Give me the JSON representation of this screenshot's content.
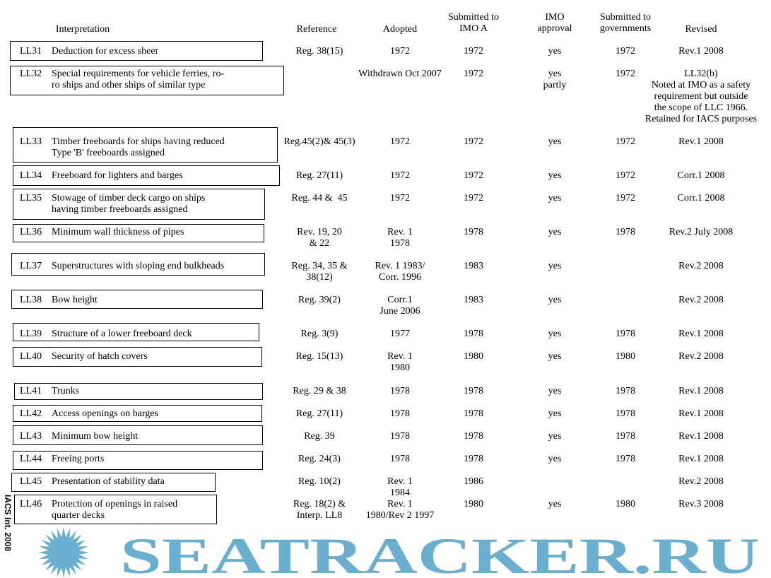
{
  "headers": {
    "interpretation": "Interpretation",
    "reference": "Reference",
    "adopted": "Adopted",
    "submitted": "Submitted to\nIMO A",
    "imo": "IMO\napproval",
    "governments": "Submitted to\ngovernments",
    "revised": "Revised"
  },
  "rows": [
    {
      "code": "LL31",
      "title": "Deduction for excess sheer",
      "reference": "Reg. 38(15)",
      "adopted": "1972",
      "submitted": "1972",
      "imo": "yes",
      "governments": "1972",
      "revised": "Rev.1 2008"
    },
    {
      "code": "LL32",
      "title": "Special requirements for vehicle ferries, ro-\nro ships and other ships of similar type",
      "reference": "",
      "adopted": "Withdrawn Oct 2007",
      "submitted": "1972",
      "imo": "yes\npartly",
      "governments": "1972",
      "revised": "LL32(b)\nNoted at IMO as a safety\nrequirement but outside\nthe scope of LLC 1966.\nRetained for IACS purposes"
    },
    {
      "code": "LL33",
      "title": "Timber freeboards for ships having reduced\nType 'B' freeboards assigned",
      "reference": "Reg.45(2)& 45(3)",
      "adopted": "1972",
      "submitted": "1972",
      "imo": "yes",
      "governments": "1972",
      "revised": "Rev.1 2008"
    },
    {
      "code": "LL34",
      "title": "Freeboard for lighters and barges",
      "reference": "Reg. 27(11)",
      "adopted": "1972",
      "submitted": "1972",
      "imo": "yes",
      "governments": "1972",
      "revised": "Corr.1 2008"
    },
    {
      "code": "LL35",
      "title": "Stowage of timber deck cargo on ships\nhaving timber freeboards assigned",
      "reference": "Reg. 44 &  45",
      "adopted": "1972",
      "submitted": "1972",
      "imo": "yes",
      "governments": "1972",
      "revised": "Corr.1 2008"
    },
    {
      "code": "LL36",
      "title": "Minimum wall thickness of pipes",
      "reference": "Rev. 19, 20\n& 22",
      "adopted": "Rev. 1\n1978",
      "submitted": "1978",
      "imo": "yes",
      "governments": "1978",
      "revised": "Rev.2 July 2008"
    },
    {
      "code": "LL37",
      "title": "Superstructures with sloping end bulkheads",
      "reference": "Reg. 34, 35 &\n38(12)",
      "adopted": "Rev. 1 1983/\nCorr. 1996",
      "submitted": "1983",
      "imo": "yes",
      "governments": "",
      "revised": "Rev.2 2008"
    },
    {
      "code": "LL38",
      "title": "Bow height",
      "reference": "Reg. 39(2)",
      "adopted": "Corr.1\nJune 2006",
      "submitted": "1983",
      "imo": "yes",
      "governments": "",
      "revised": "Rev.2 2008"
    },
    {
      "code": "LL39",
      "title": "Structure of a lower freeboard deck",
      "reference": "Reg. 3(9)",
      "adopted": "1977",
      "submitted": "1978",
      "imo": "yes",
      "governments": "1978",
      "revised": "Rev.1 2008"
    },
    {
      "code": "LL40",
      "title": "Security of hatch covers",
      "reference": "Reg. 15(13)",
      "adopted": "Rev. 1\n1980",
      "submitted": "1980",
      "imo": "yes",
      "governments": "1980",
      "revised": "Rev.2 2008"
    },
    {
      "code": "LL41",
      "title": "Trunks",
      "reference": "Reg. 29 & 38",
      "adopted": "1978",
      "submitted": "1978",
      "imo": "yes",
      "governments": "1978",
      "revised": "Rev.1 2008"
    },
    {
      "code": "LL42",
      "title": "Access openings on barges",
      "reference": "Reg. 27(11)",
      "adopted": "1978",
      "submitted": "1978",
      "imo": "yes",
      "governments": "1978",
      "revised": "Rev.1 2008"
    },
    {
      "code": "LL43",
      "title": "Minimum bow height",
      "reference": "Reg. 39",
      "adopted": "1978",
      "submitted": "1978",
      "imo": "yes",
      "governments": "1978",
      "revised": "Rev.1 2008"
    },
    {
      "code": "LL44",
      "title": "Freeing ports",
      "reference": "Reg. 24(3)",
      "adopted": "1978",
      "submitted": "1978",
      "imo": "yes",
      "governments": "1978",
      "revised": "Rev.1 2008"
    },
    {
      "code": "LL45",
      "title": "Presentation of stability data",
      "reference": "Reg. 10(2)",
      "adopted": "Rev. 1\n1984",
      "submitted": "1986",
      "imo": "",
      "governments": "",
      "revised": "Rev.2 2008"
    },
    {
      "code": "LL46",
      "title": "Protection of openings in raised\nquarter decks",
      "reference": "Reg. 18(2) &\nInterp. LL8",
      "adopted": "Rev. 1\n1980/Rev 2 1997",
      "submitted": "1980",
      "imo": "yes",
      "governments": "1980",
      "revised": "Rev.3 2008"
    }
  ],
  "footer": "IACS Int. 2008",
  "watermark": {
    "text": "SEATRACKER.RU",
    "color": "#6aaed0"
  }
}
